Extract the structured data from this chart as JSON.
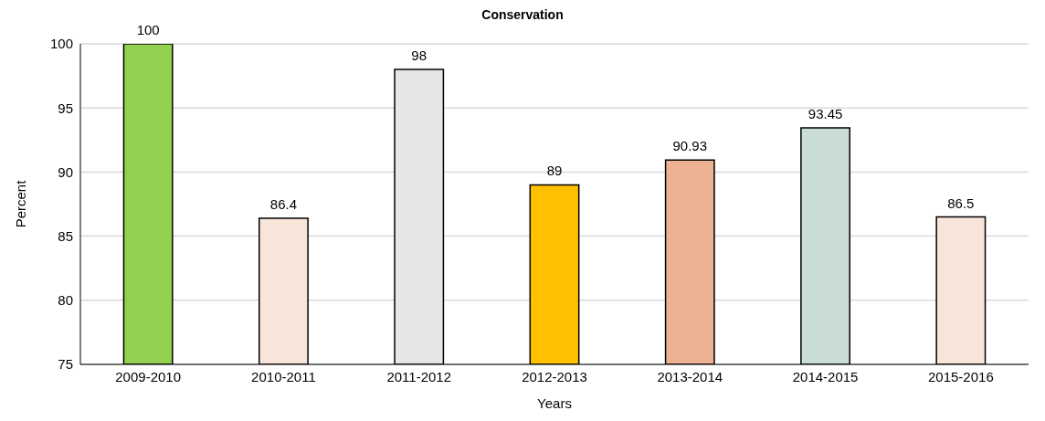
{
  "chart_data": {
    "type": "bar",
    "title": "Conservation",
    "xlabel": "Years",
    "ylabel": "Percent",
    "categories": [
      "2009-2010",
      "2010-2011",
      "2011-2012",
      "2012-2013",
      "2013-2014",
      "2014-2015",
      "2015-2016"
    ],
    "values": [
      100,
      86.4,
      98,
      89,
      90.93,
      93.45,
      86.5
    ],
    "colors": [
      "#92d050",
      "#f8e5da",
      "#e7e6e6",
      "#ffc000",
      "#ecb191",
      "#c9dcd8",
      "#f8e5da"
    ],
    "ylim": [
      75,
      100
    ],
    "yticks": [
      75,
      80,
      85,
      90,
      95,
      100
    ],
    "grid": "y",
    "data_labels": true
  }
}
